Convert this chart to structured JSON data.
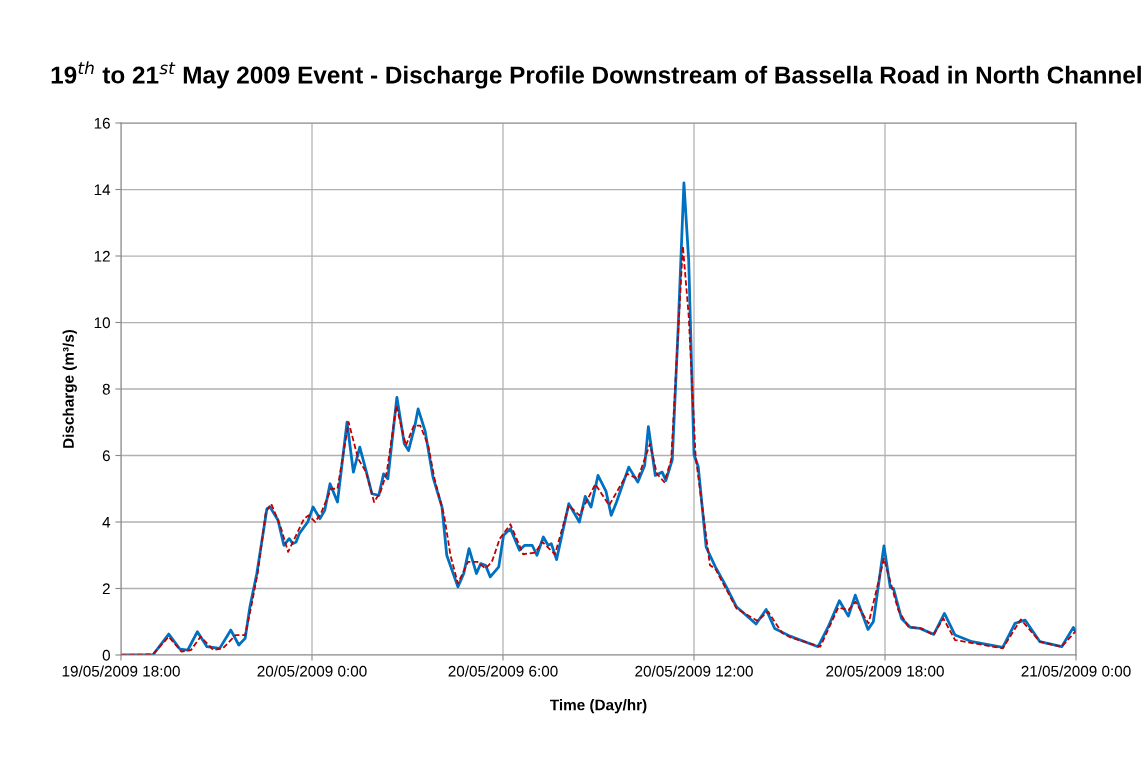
{
  "chart_data": {
    "type": "line",
    "title": "19$^{th}$ to 21$^{st}$ May 2009 Event - Discharge Profile Downstream of Bassella Road in North Channel",
    "xlabel": "Time (Day/hr)",
    "ylabel": "Discharge (m³/s)",
    "xlim": [
      "2009-05-19T18:00",
      "2009-05-21T00:00"
    ],
    "xticks": [
      {
        "value": "2009-05-19T18:00",
        "label": "19/05/2009 18:00"
      },
      {
        "value": "2009-05-20T00:00",
        "label": "20/05/2009 0:00"
      },
      {
        "value": "2009-05-20T06:00",
        "label": "20/05/2009 6:00"
      },
      {
        "value": "2009-05-20T12:00",
        "label": "20/05/2009 12:00"
      },
      {
        "value": "2009-05-20T18:00",
        "label": "20/05/2009 18:00"
      },
      {
        "value": "2009-05-21T00:00",
        "label": "21/05/2009 0:00"
      }
    ],
    "ylim": [
      0,
      16
    ],
    "yticks": [
      0,
      2,
      4,
      6,
      8,
      10,
      12,
      14,
      16
    ],
    "grid": true,
    "marker": "none",
    "series": [
      {
        "color": "#0070c0",
        "line_style": "solid",
        "x": [
          "2009-05-19T18:00",
          "2009-05-19T19:00",
          "2009-05-19T19:30",
          "2009-05-19T19:51",
          "2009-05-19T20:06",
          "2009-05-19T20:24",
          "2009-05-19T20:42",
          "2009-05-19T21:06",
          "2009-05-19T21:27",
          "2009-05-19T21:42",
          "2009-05-19T21:54",
          "2009-05-19T22:03",
          "2009-05-19T22:16",
          "2009-05-19T22:35",
          "2009-05-19T22:41",
          "2009-05-19T22:56",
          "2009-05-19T23:07",
          "2009-05-19T23:17",
          "2009-05-19T23:24",
          "2009-05-19T23:30",
          "2009-05-19T23:36",
          "2009-05-19T23:52",
          "2009-05-20T00:02",
          "2009-05-20T00:15",
          "2009-05-20T00:24",
          "2009-05-20T00:34",
          "2009-05-20T00:48",
          "2009-05-20T01:06",
          "2009-05-20T01:18",
          "2009-05-20T01:30",
          "2009-05-20T01:41",
          "2009-05-20T01:53",
          "2009-05-20T02:06",
          "2009-05-20T02:15",
          "2009-05-20T02:23",
          "2009-05-20T02:40",
          "2009-05-20T02:54",
          "2009-05-20T03:02",
          "2009-05-20T03:14",
          "2009-05-20T03:20",
          "2009-05-20T03:33",
          "2009-05-20T03:48",
          "2009-05-20T04:05",
          "2009-05-20T04:14",
          "2009-05-20T04:35",
          "2009-05-20T04:46",
          "2009-05-20T04:56",
          "2009-05-20T05:10",
          "2009-05-20T05:18",
          "2009-05-20T05:27",
          "2009-05-20T05:36",
          "2009-05-20T05:52",
          "2009-05-20T06:01",
          "2009-05-20T06:14",
          "2009-05-20T06:31",
          "2009-05-20T06:41",
          "2009-05-20T06:55",
          "2009-05-20T07:04",
          "2009-05-20T07:16",
          "2009-05-20T07:25",
          "2009-05-20T07:31",
          "2009-05-20T07:41",
          "2009-05-20T08:04",
          "2009-05-20T08:24",
          "2009-05-20T08:35",
          "2009-05-20T08:46",
          "2009-05-20T08:59",
          "2009-05-20T09:14",
          "2009-05-20T09:24",
          "2009-05-20T09:34",
          "2009-05-20T09:57",
          "2009-05-20T10:14",
          "2009-05-20T10:27",
          "2009-05-20T10:34",
          "2009-05-20T10:47",
          "2009-05-20T11:00",
          "2009-05-20T11:07",
          "2009-05-20T11:19",
          "2009-05-20T11:30",
          "2009-05-20T11:41",
          "2009-05-20T11:50",
          "2009-05-20T12:00",
          "2009-05-20T12:08",
          "2009-05-20T12:23",
          "2009-05-20T12:40",
          "2009-05-20T13:00",
          "2009-05-20T13:20",
          "2009-05-20T13:57",
          "2009-05-20T14:16",
          "2009-05-20T14:32",
          "2009-05-20T15:02",
          "2009-05-20T15:54",
          "2009-05-20T16:13",
          "2009-05-20T16:34",
          "2009-05-20T16:51",
          "2009-05-20T17:04",
          "2009-05-20T17:28",
          "2009-05-20T17:38",
          "2009-05-20T17:58",
          "2009-05-20T18:10",
          "2009-05-20T18:16",
          "2009-05-20T18:31",
          "2009-05-20T18:48",
          "2009-05-20T19:06",
          "2009-05-20T19:32",
          "2009-05-20T19:52",
          "2009-05-20T20:12",
          "2009-05-20T20:44",
          "2009-05-20T21:42",
          "2009-05-20T22:05",
          "2009-05-20T22:24",
          "2009-05-20T22:52",
          "2009-05-20T23:33",
          "2009-05-20T23:55",
          "2009-05-21T00:00"
        ],
        "values": [
          0,
          0.0,
          0.63,
          0.18,
          0.15,
          0.7,
          0.25,
          0.2,
          0.75,
          0.3,
          0.5,
          1.45,
          2.45,
          4.4,
          4.45,
          4.05,
          3.3,
          3.5,
          3.35,
          3.4,
          3.65,
          4.0,
          4.45,
          4.1,
          4.35,
          5.15,
          4.6,
          7.0,
          5.5,
          6.25,
          5.6,
          4.85,
          4.8,
          5.45,
          5.3,
          7.75,
          6.35,
          6.15,
          6.9,
          7.4,
          6.75,
          5.35,
          4.45,
          3.0,
          2.05,
          2.45,
          3.2,
          2.45,
          2.75,
          2.7,
          2.35,
          2.65,
          3.6,
          3.8,
          3.15,
          3.3,
          3.3,
          3.0,
          3.55,
          3.3,
          3.35,
          2.87,
          4.55,
          4.0,
          4.77,
          4.45,
          5.4,
          4.93,
          4.2,
          4.6,
          5.65,
          5.2,
          5.7,
          6.87,
          5.4,
          5.5,
          5.25,
          5.87,
          9.77,
          14.2,
          11.87,
          6.03,
          5.66,
          3.24,
          2.66,
          2.08,
          1.45,
          0.93,
          1.37,
          0.8,
          0.56,
          0.25,
          0.85,
          1.63,
          1.17,
          1.8,
          0.77,
          1.0,
          3.28,
          2.03,
          2.0,
          1.1,
          0.83,
          0.8,
          0.62,
          1.25,
          0.6,
          0.4,
          0.23,
          0.95,
          1.05,
          0.4,
          0.25,
          0.83,
          0.7
        ]
      },
      {
        "color": "#c00000",
        "line_style": "dashed",
        "x": [
          "2009-05-19T18:00",
          "2009-05-19T19:00",
          "2009-05-19T19:30",
          "2009-05-19T19:54",
          "2009-05-19T20:12",
          "2009-05-19T20:30",
          "2009-05-19T20:54",
          "2009-05-19T21:12",
          "2009-05-19T21:36",
          "2009-05-19T21:54",
          "2009-05-19T22:06",
          "2009-05-19T22:18",
          "2009-05-19T22:33",
          "2009-05-19T22:43",
          "2009-05-19T23:00",
          "2009-05-19T23:15",
          "2009-05-19T23:30",
          "2009-05-19T23:45",
          "2009-05-19T23:54",
          "2009-05-20T00:06",
          "2009-05-20T00:18",
          "2009-05-20T00:36",
          "2009-05-20T00:48",
          "2009-05-20T01:09",
          "2009-05-20T01:27",
          "2009-05-20T01:42",
          "2009-05-20T01:57",
          "2009-05-20T02:09",
          "2009-05-20T02:21",
          "2009-05-20T02:39",
          "2009-05-20T02:57",
          "2009-05-20T03:12",
          "2009-05-20T03:24",
          "2009-05-20T03:39",
          "2009-05-20T03:51",
          "2009-05-20T04:09",
          "2009-05-20T04:21",
          "2009-05-20T04:35",
          "2009-05-20T04:54",
          "2009-05-20T05:12",
          "2009-05-20T05:27",
          "2009-05-20T05:39",
          "2009-05-20T05:54",
          "2009-05-20T06:14",
          "2009-05-20T06:38",
          "2009-05-20T07:01",
          "2009-05-20T07:14",
          "2009-05-20T07:38",
          "2009-05-20T08:04",
          "2009-05-20T08:24",
          "2009-05-20T08:54",
          "2009-05-20T09:20",
          "2009-05-20T09:54",
          "2009-05-20T10:14",
          "2009-05-20T10:37",
          "2009-05-20T10:50",
          "2009-05-20T11:04",
          "2009-05-20T11:17",
          "2009-05-20T11:39",
          "2009-05-20T11:50",
          "2009-05-20T12:03",
          "2009-05-20T12:30",
          "2009-05-20T12:40",
          "2009-05-20T13:20",
          "2009-05-20T13:59",
          "2009-05-20T14:20",
          "2009-05-20T14:46",
          "2009-05-20T15:02",
          "2009-05-20T15:58",
          "2009-05-20T16:32",
          "2009-05-20T16:51",
          "2009-05-20T17:04",
          "2009-05-20T17:29",
          "2009-05-20T17:58",
          "2009-05-20T18:25",
          "2009-05-20T18:44",
          "2009-05-20T19:09",
          "2009-05-20T19:31",
          "2009-05-20T19:50",
          "2009-05-20T20:12",
          "2009-05-20T21:42",
          "2009-05-20T22:16",
          "2009-05-20T22:52",
          "2009-05-20T23:33",
          "2009-05-21T00:00"
        ],
        "values": [
          0,
          0.02,
          0.55,
          0.1,
          0.15,
          0.55,
          0.15,
          0.2,
          0.6,
          0.6,
          1.5,
          2.5,
          4.3,
          4.55,
          3.9,
          3.1,
          3.6,
          4.1,
          4.2,
          4.0,
          4.3,
          5.0,
          5.0,
          7.0,
          5.9,
          5.5,
          4.6,
          4.9,
          5.5,
          7.5,
          6.3,
          6.9,
          6.9,
          6.3,
          5.3,
          4.2,
          3.0,
          2.15,
          2.8,
          2.8,
          2.6,
          2.8,
          3.5,
          3.93,
          3.03,
          3.08,
          3.4,
          3.03,
          4.5,
          4.2,
          5.14,
          4.5,
          5.45,
          5.3,
          6.35,
          5.45,
          5.2,
          5.87,
          12.3,
          10.2,
          5.98,
          2.7,
          2.6,
          1.4,
          1.03,
          1.3,
          0.66,
          0.53,
          0.25,
          1.43,
          1.35,
          1.6,
          0.95,
          2.9,
          1.35,
          0.85,
          0.8,
          0.6,
          1.1,
          0.45,
          0.2,
          1.07,
          0.4,
          0.25,
          0.73
        ]
      }
    ]
  }
}
